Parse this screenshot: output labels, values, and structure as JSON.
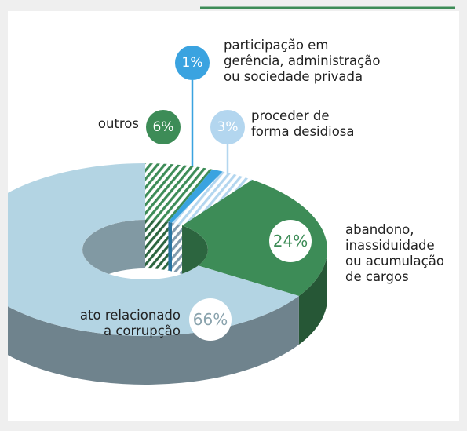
{
  "chart_data": {
    "type": "donut",
    "categories": [
      "outros",
      "participação em\ngerência, administração\nou sociedade privada",
      "proceder de\nforma desidiosa",
      "abandono,\ninassiduidade\nou acumulação\nde cargos",
      "ato relacionado\na corrupção"
    ],
    "values": [
      6,
      1,
      3,
      24,
      66
    ],
    "value_labels": [
      "6%",
      "1%",
      "3%",
      "24%",
      "66%"
    ],
    "colors": [
      "#3d8c57",
      "#3aa3e0",
      "#b3d6ef",
      "#3d8c57",
      "#b3d4e3"
    ],
    "hatched": [
      true,
      false,
      true,
      false,
      false
    ]
  }
}
